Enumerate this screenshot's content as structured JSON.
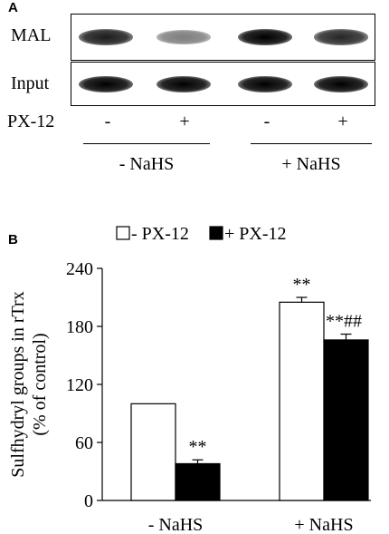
{
  "panel_a": {
    "letter": "A",
    "rows": [
      {
        "label": "MAL",
        "bands": [
          0.85,
          0.35,
          1.0,
          0.8
        ]
      },
      {
        "label": "Input",
        "bands": [
          1.0,
          1.0,
          1.0,
          1.0
        ]
      }
    ],
    "treatment": {
      "label": "PX-12",
      "signs": [
        "-",
        "+",
        "-",
        "+"
      ]
    },
    "groups": [
      "- NaHS",
      "+ NaHS"
    ]
  },
  "panel_b": {
    "letter": "B",
    "legend": [
      {
        "label": "- PX-12",
        "fill": "#ffffff"
      },
      {
        "label": "+ PX-12",
        "fill": "#000000"
      }
    ]
  },
  "chart_data": {
    "type": "bar",
    "categories": [
      "- NaHS",
      "+ NaHS"
    ],
    "series": [
      {
        "name": "- PX-12",
        "values": [
          100,
          205
        ],
        "errors": [
          0,
          5
        ],
        "labels": [
          "",
          "**"
        ],
        "color": "#ffffff"
      },
      {
        "name": "+ PX-12",
        "values": [
          38,
          166
        ],
        "errors": [
          4,
          6
        ],
        "labels": [
          "**",
          "**##"
        ],
        "color": "#000000"
      }
    ],
    "ylabel": "Sulfhydryl groups in rTrx\n(% of control)",
    "ylim": [
      0,
      240
    ],
    "yticks": [
      0,
      60,
      120,
      180,
      240
    ],
    "grid": false,
    "legend_position": "top"
  }
}
